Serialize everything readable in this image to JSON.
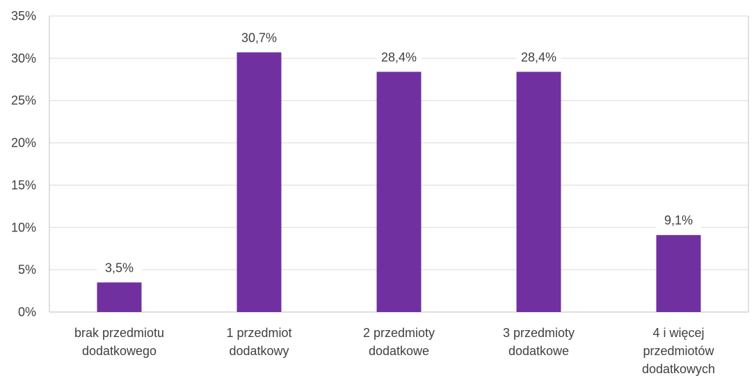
{
  "chart_data": {
    "type": "bar",
    "categories": [
      [
        "brak przedmiotu",
        "dodatkowego"
      ],
      [
        "1 przedmiot",
        "dodatkowy"
      ],
      [
        "2 przedmioty",
        "dodatkowe"
      ],
      [
        "3 przedmioty",
        "dodatkowe"
      ],
      [
        "4 i więcej",
        "przedmiotów",
        "dodatkowych"
      ]
    ],
    "values": [
      3.5,
      30.7,
      28.4,
      28.4,
      9.1
    ],
    "data_labels": [
      "3,5%",
      "30,7%",
      "28,4%",
      "28,4%",
      "9,1%"
    ],
    "y_ticks": [
      0,
      5,
      10,
      15,
      20,
      25,
      30,
      35
    ],
    "y_tick_labels": [
      "0%",
      "5%",
      "10%",
      "15%",
      "20%",
      "25%",
      "30%",
      "35%"
    ],
    "ylim": [
      0,
      35
    ],
    "grid": true,
    "legend": false,
    "bar_color": "#7030a0",
    "title": "",
    "xlabel": "",
    "ylabel": ""
  }
}
